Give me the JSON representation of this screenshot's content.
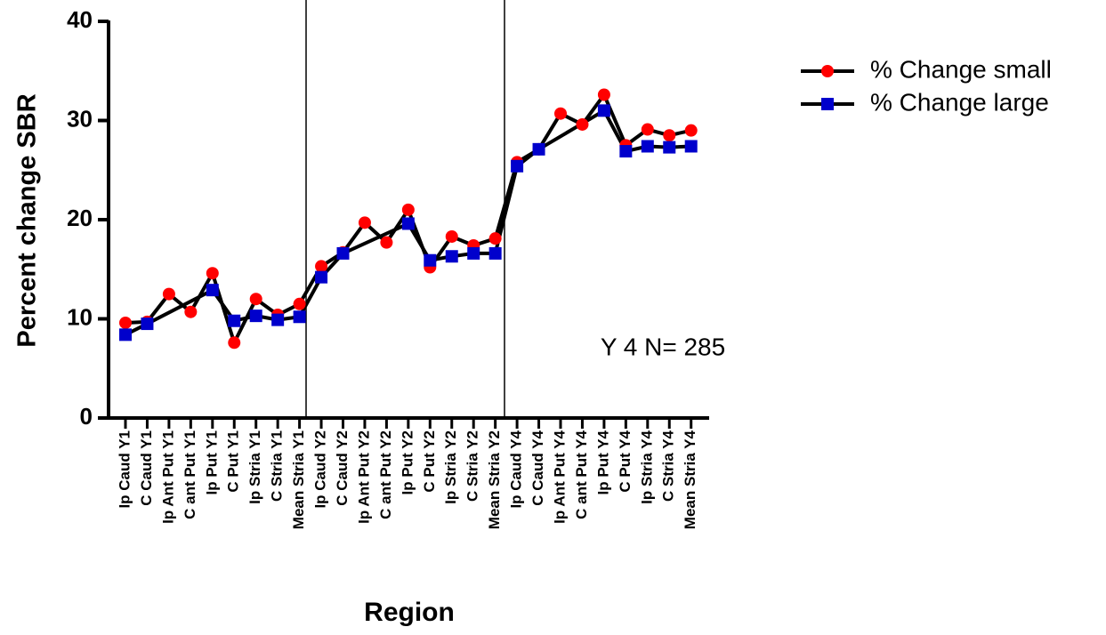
{
  "chart_data": {
    "type": "line",
    "y_label": "Percent change SBR",
    "x_label": "Region",
    "annotation": "Y 4 N= 285",
    "categories": [
      "Ip Caud Y1",
      "C Caud Y1",
      "Ip Ant Put Y1",
      "C ant Put Y1",
      "Ip Put Y1",
      "C Put Y1",
      "Ip Stria Y1",
      "C Stria Y1",
      "Mean Stria Y1",
      "Ip Caud Y2",
      "C Caud Y2",
      "Ip Ant Put Y2",
      "C ant Put Y2",
      "Ip Put Y2",
      "C Put Y2",
      "Ip Stria Y2",
      "C Stria Y2",
      "Mean Stria Y2",
      "Ip Caud Y4",
      "C Caud Y4",
      "Ip Ant Put Y4",
      "C ant Put Y4",
      "Ip Put Y4",
      "C Put Y4",
      "Ip Stria Y4",
      "C Stria Y4",
      "Mean Stria Y4"
    ],
    "series": [
      {
        "name": "% Change small",
        "color": "#ff0000",
        "marker": "circle",
        "values": [
          9.6,
          9.7,
          12.5,
          10.7,
          14.6,
          7.6,
          12.0,
          10.4,
          11.5,
          15.3,
          16.7,
          19.7,
          17.7,
          21.0,
          15.2,
          18.3,
          17.4,
          18.1,
          25.8,
          27.1,
          30.7,
          29.6,
          32.6,
          27.5,
          29.1,
          28.5,
          29.0
        ]
      },
      {
        "name": "% Change large",
        "color": "#0000cc",
        "marker": "square",
        "values": [
          8.4,
          9.5,
          null,
          null,
          12.9,
          9.8,
          10.3,
          9.9,
          10.2,
          14.2,
          16.6,
          null,
          null,
          19.6,
          15.9,
          16.3,
          16.6,
          16.6,
          25.4,
          27.1,
          null,
          null,
          31.0,
          26.9,
          27.4,
          27.3,
          27.4
        ]
      }
    ],
    "line_color": "#000000",
    "connect_gaps": true,
    "ylim": [
      0,
      40
    ],
    "yticks": [
      0,
      10,
      20,
      30,
      40
    ],
    "grid": false,
    "legend": "outside-right"
  }
}
